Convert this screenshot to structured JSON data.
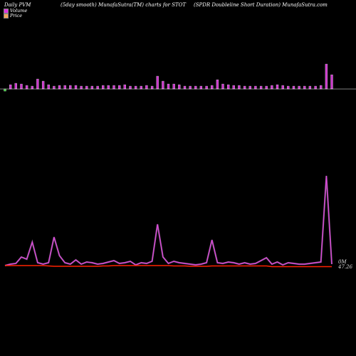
{
  "header": {
    "left": "Daily PVM",
    "middle": "(5day smooth) MunafaSutra(TM) charts for STOT",
    "right": "(SPDR Doubleline   Short Duration) MunafaSutra.com"
  },
  "legend": {
    "volume_label": "Volume",
    "price_label": "Price",
    "volume_color": "#e033e0",
    "price_color": "#f4a45a"
  },
  "last_labels": {
    "volume": "0M",
    "price": "47.26"
  },
  "colors": {
    "volume_bar": "#cc33cc",
    "volume_down_bar": "#33cc33",
    "volume_line": "#dd44dd",
    "price_line": "#ff2200",
    "background": "#000000"
  },
  "chart_data": [
    {
      "type": "bar",
      "name": "volume_bars",
      "values": [
        8,
        6,
        8,
        7,
        5,
        4,
        14,
        11,
        6,
        4,
        5,
        5,
        5,
        5,
        4,
        4,
        4,
        4,
        5,
        5,
        5,
        5,
        6,
        4,
        4,
        4,
        5,
        4,
        18,
        11,
        7,
        7,
        6,
        4,
        4,
        4,
        4,
        4,
        5,
        13,
        7,
        6,
        5,
        5,
        4,
        4,
        4,
        4,
        4,
        5,
        6,
        5,
        4,
        4,
        4,
        4,
        4,
        4,
        5,
        35,
        20
      ],
      "down_bars": [
        0
      ]
    },
    {
      "type": "line",
      "name": "volume_line",
      "values": [
        2,
        4,
        5,
        14,
        11,
        35,
        6,
        4,
        6,
        42,
        16,
        6,
        4,
        10,
        4,
        7,
        6,
        4,
        5,
        7,
        9,
        5,
        6,
        8,
        3,
        6,
        5,
        8,
        60,
        14,
        5,
        8,
        6,
        5,
        4,
        3,
        4,
        6,
        38,
        6,
        5,
        7,
        6,
        4,
        6,
        4,
        5,
        9,
        13,
        4,
        7,
        3,
        6,
        5,
        4,
        4,
        5,
        6,
        7,
        128,
        4
      ]
    },
    {
      "type": "line",
      "name": "price_line",
      "values": [
        3,
        3,
        3,
        3,
        3,
        3,
        3,
        3,
        2.5,
        2,
        2,
        2,
        2,
        2,
        2,
        2,
        2,
        2,
        2.5,
        2.5,
        3,
        3,
        3,
        3,
        3,
        3,
        3,
        3,
        3,
        3,
        3,
        2.5,
        2.5,
        2.5,
        2,
        2,
        2,
        2,
        2.5,
        2.5,
        2.5,
        2.5,
        2.5,
        2.5,
        2.5,
        2.5,
        2.5,
        2.5,
        2.5,
        1.5,
        1.5,
        1.5,
        1.5,
        1.5,
        1.5,
        1.5,
        1.5,
        1.5,
        1.5,
        1.5,
        1.5
      ]
    }
  ]
}
